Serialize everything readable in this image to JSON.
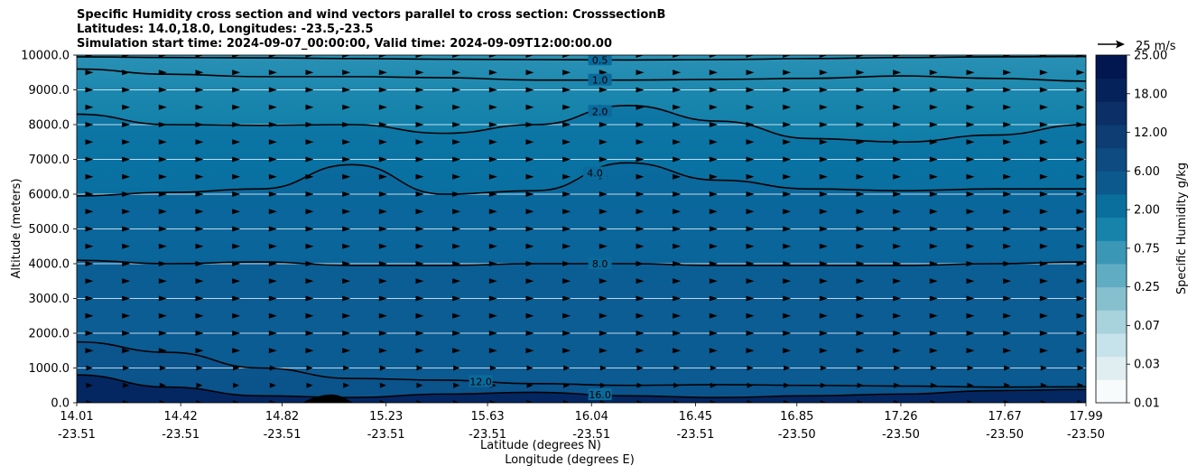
{
  "title_lines": [
    "Specific Humidity cross section and wind vectors parallel to cross section: CrosssectionB",
    "Latitudes: 14.0,18.0, Longitudes: -23.5,-23.5",
    "Simulation start time: 2024-09-07_00:00:00, Valid time: 2024-09-09T12:00:00.00"
  ],
  "chart_data": {
    "type": "contourf",
    "title": "Specific Humidity cross section and wind vectors parallel to cross section: CrosssectionB",
    "ylabel": "Altitude (meters)",
    "xlabel_lines": [
      "Latitude (degrees N)",
      "Longitude (degrees E)"
    ],
    "ylim": [
      0,
      10000
    ],
    "yticks": [
      "0.0",
      "1000.0",
      "2000.0",
      "3000.0",
      "4000.0",
      "5000.0",
      "6000.0",
      "7000.0",
      "8000.0",
      "9000.0",
      "10000.0"
    ],
    "xticks": [
      {
        "lat": "14.01",
        "lon": "-23.51"
      },
      {
        "lat": "14.42",
        "lon": "-23.51"
      },
      {
        "lat": "14.82",
        "lon": "-23.51"
      },
      {
        "lat": "15.23",
        "lon": "-23.51"
      },
      {
        "lat": "15.63",
        "lon": "-23.51"
      },
      {
        "lat": "16.04",
        "lon": "-23.51"
      },
      {
        "lat": "16.45",
        "lon": "-23.51"
      },
      {
        "lat": "16.85",
        "lon": "-23.50"
      },
      {
        "lat": "17.26",
        "lon": "-23.50"
      },
      {
        "lat": "17.67",
        "lon": "-23.50"
      },
      {
        "lat": "17.99",
        "lon": "-23.50"
      }
    ],
    "xlim": [
      14.01,
      17.99
    ],
    "contour_lines": [
      {
        "value": 0.5,
        "label": "0.5",
        "label_lat": 16.07,
        "altitudes": [
          9950,
          9930,
          9920,
          9900,
          9880,
          9870,
          9860,
          9870,
          9900,
          9930,
          9950,
          9960
        ]
      },
      {
        "value": 1.0,
        "label": "1.0",
        "label_lat": 16.07,
        "altitudes": [
          9600,
          9450,
          9380,
          9380,
          9350,
          9280,
          9280,
          9300,
          9330,
          9400,
          9330,
          9250
        ]
      },
      {
        "value": 2.0,
        "label": "2.0",
        "label_lat": 16.07,
        "altitudes": [
          8300,
          8000,
          7980,
          8000,
          7750,
          8000,
          8550,
          8100,
          7600,
          7500,
          7700,
          8000
        ]
      },
      {
        "value": 4.0,
        "label": "4.0",
        "label_lat": 16.05,
        "altitudes": [
          5950,
          6050,
          6150,
          6850,
          6000,
          6100,
          6900,
          6400,
          6150,
          6100,
          6150,
          6150
        ]
      },
      {
        "value": 8.0,
        "label": "8.0",
        "label_lat": 16.07,
        "altitudes": [
          4100,
          4000,
          4050,
          3950,
          3950,
          4000,
          4000,
          3950,
          3950,
          3950,
          4000,
          4050
        ]
      },
      {
        "value": 12.0,
        "label": "12.0",
        "label_lat": 15.6,
        "altitudes": [
          1750,
          1450,
          1000,
          700,
          650,
          550,
          500,
          520,
          500,
          480,
          450,
          460
        ]
      },
      {
        "value": 16.0,
        "label": "16.0",
        "label_lat": 16.07,
        "altitudes": [
          800,
          450,
          200,
          150,
          250,
          300,
          200,
          150,
          200,
          250,
          350,
          380
        ]
      }
    ],
    "filled_levels": [
      "0.01",
      "0.03",
      "0.07",
      "0.25",
      "0.75",
      "2.00",
      "6.00",
      "12.00",
      "18.00",
      "25.00"
    ],
    "colorbar": {
      "label": "Specific Humidity g/kg",
      "tick_labels": [
        "0.01",
        "0.03",
        "0.07",
        "0.25",
        "0.75",
        "2.00",
        "6.00",
        "12.00",
        "18.00",
        "25.00"
      ],
      "colors": [
        "#f7fbfc",
        "#e0eef2",
        "#c6e2ea",
        "#a8d2dc",
        "#86c0cf",
        "#60acc2",
        "#3b97b6",
        "#1783ab",
        "#0b6f9e",
        "#0c5a8d",
        "#0d4b80",
        "#0e3d74",
        "#0b2f66",
        "#06225a",
        "#02164f"
      ]
    },
    "wind_key": {
      "label": "25 m/s",
      "value": 25
    },
    "wind_vectors": {
      "direction": "parallel",
      "rows_altitude_m": [
        0,
        500,
        1000,
        1500,
        2000,
        2500,
        3000,
        3500,
        4000,
        4500,
        5000,
        5500,
        6000,
        6500,
        7000,
        7500,
        8000,
        8500,
        9000,
        9500,
        10000
      ],
      "columns": 28
    }
  }
}
